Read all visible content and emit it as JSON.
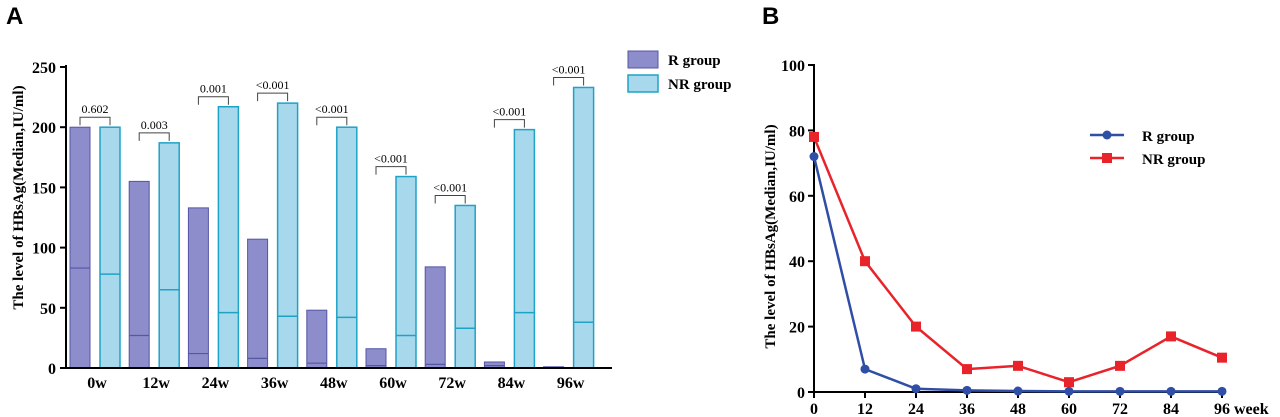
{
  "figure": {
    "panel_a_label": "A",
    "panel_b_label": "B"
  },
  "colors": {
    "r_group": "#8c8dca",
    "r_group_stroke": "#5456a6",
    "nr_group": "#a8d8ec",
    "nr_group_stroke": "#1ea3c7",
    "line_r": "#2f4ea5",
    "line_nr": "#e8232a"
  },
  "chart_data": [
    {
      "type": "bar",
      "title": "",
      "xlabel": "",
      "ylabel": "The level of HBsAg(Median,IU/ml)",
      "ylim": [
        0,
        250
      ],
      "yticks": [
        "0",
        "50",
        "100",
        "150",
        "200",
        "250"
      ],
      "categories": [
        "0w",
        "12w",
        "24w",
        "36w",
        "48w",
        "60w",
        "72w",
        "84w",
        "96w"
      ],
      "series": [
        {
          "name": "R group",
          "values": [
            200,
            155,
            133,
            107,
            48,
            16,
            84,
            5,
            1
          ],
          "inner_values": [
            83,
            27,
            12,
            8,
            4,
            2,
            3,
            2,
            0
          ]
        },
        {
          "name": "NR group",
          "values": [
            200,
            187,
            217,
            220,
            200,
            159,
            135,
            198,
            233
          ],
          "inner_values": [
            78,
            65,
            46,
            43,
            42,
            27,
            33,
            46,
            38
          ]
        }
      ],
      "annotations": [
        "0.602",
        "0.003",
        "0.001",
        "<0.001",
        "<0.001",
        "<0.001",
        "<0.001",
        "<0.001",
        "<0.001"
      ],
      "legend": "top-right"
    },
    {
      "type": "line",
      "title": "",
      "xlabel": "week",
      "ylabel": "The level of HBsAg(Median,IU/ml)",
      "ylim": [
        0,
        100
      ],
      "xlim": [
        0,
        96
      ],
      "yticks": [
        "0",
        "20",
        "40",
        "60",
        "80",
        "100"
      ],
      "xticks": [
        "0",
        "12",
        "24",
        "36",
        "48",
        "60",
        "72",
        "84",
        "96"
      ],
      "x": [
        0,
        12,
        24,
        36,
        48,
        60,
        72,
        84,
        96
      ],
      "series": [
        {
          "name": "R group",
          "values": [
            72,
            7,
            1,
            0.5,
            0.3,
            0.2,
            0.2,
            0.2,
            0.2
          ]
        },
        {
          "name": "NR group",
          "values": [
            78,
            40,
            20,
            7,
            8,
            3,
            8,
            17,
            10.5
          ]
        }
      ],
      "legend": "top-right"
    }
  ]
}
